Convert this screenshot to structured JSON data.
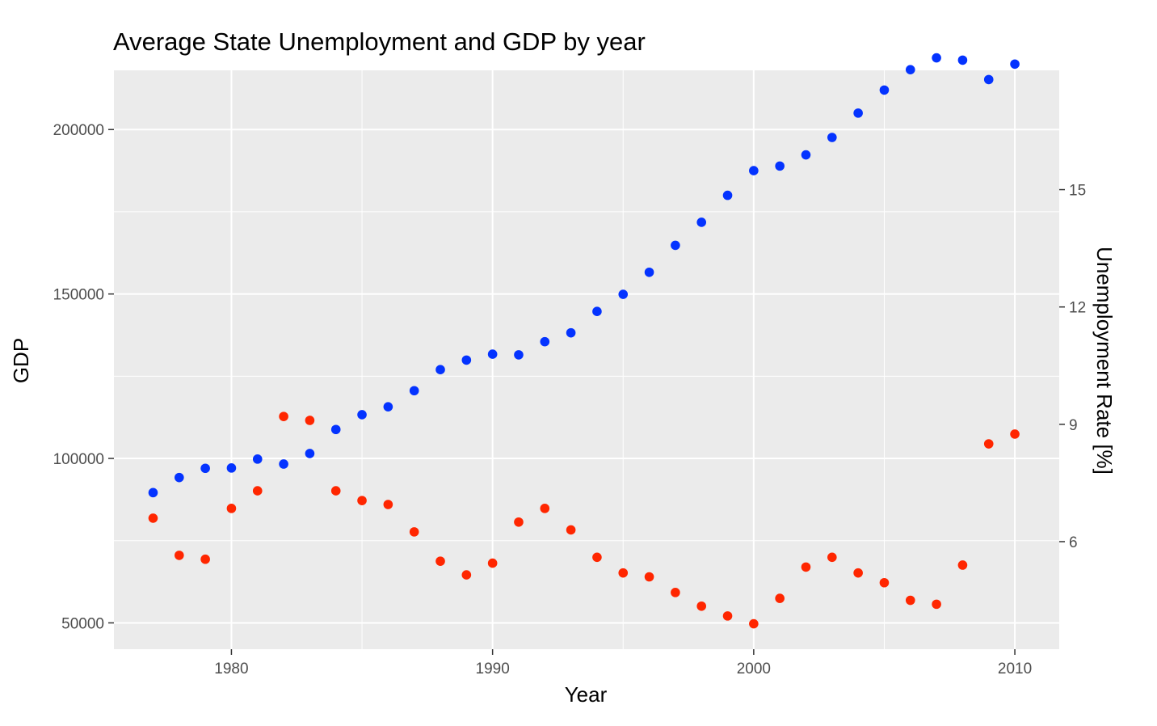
{
  "chart_data": {
    "type": "scatter",
    "title": "Average State Unemployment and GDP by year",
    "xlabel": "Year",
    "ylabel": "GDP",
    "y2label": "Unemployment Rate [%]",
    "xlim": [
      1975.5,
      2011.7
    ],
    "ylim": [
      42000,
      218000
    ],
    "y2lim": [
      3.25,
      18.05
    ],
    "x_ticks": [
      1980,
      1990,
      2000,
      2010
    ],
    "y_ticks": [
      50000,
      100000,
      150000,
      200000
    ],
    "y2_ticks": [
      6,
      9,
      12,
      15
    ],
    "grid": true,
    "panel_background": "#ebebeb",
    "series": [
      {
        "axis": "left",
        "color": "#0433ff",
        "x": [
          1977,
          1978,
          1979,
          1980,
          1981,
          1982,
          1983,
          1984,
          1985,
          1986,
          1987,
          1988,
          1989,
          1990,
          1991,
          1992,
          1993,
          1994,
          1995,
          1996,
          1997,
          1998,
          1999,
          2000,
          2001,
          2002,
          2003,
          2004,
          2005,
          2006,
          2007,
          2008,
          2009,
          2010
        ],
        "values": [
          89600,
          94200,
          97000,
          97100,
          99800,
          98300,
          101500,
          108800,
          113300,
          115700,
          120600,
          127000,
          129900,
          131700,
          131500,
          135500,
          138200,
          144700,
          149900,
          156600,
          164800,
          171800,
          180000,
          187500,
          188900,
          192300,
          197600,
          205000,
          212000,
          218200,
          221800,
          221100,
          215200,
          219900
        ]
      },
      {
        "axis": "right",
        "color": "#ff2600",
        "x": [
          1977,
          1978,
          1979,
          1980,
          1981,
          1982,
          1983,
          1984,
          1985,
          1986,
          1987,
          1988,
          1989,
          1990,
          1991,
          1992,
          1993,
          1994,
          1995,
          1996,
          1997,
          1998,
          1999,
          2000,
          2001,
          2002,
          2003,
          2004,
          2005,
          2006,
          2007,
          2008,
          2009,
          2010
        ],
        "values": [
          6.6,
          5.65,
          5.55,
          6.85,
          7.3,
          9.2,
          9.1,
          7.3,
          7.05,
          6.95,
          6.25,
          5.5,
          5.15,
          5.45,
          6.5,
          6.85,
          6.3,
          5.6,
          5.2,
          5.1,
          4.7,
          4.35,
          4.1,
          3.9,
          4.55,
          5.35,
          5.6,
          5.2,
          4.95,
          4.5,
          4.4,
          5.4,
          8.5,
          8.75
        ]
      }
    ]
  }
}
